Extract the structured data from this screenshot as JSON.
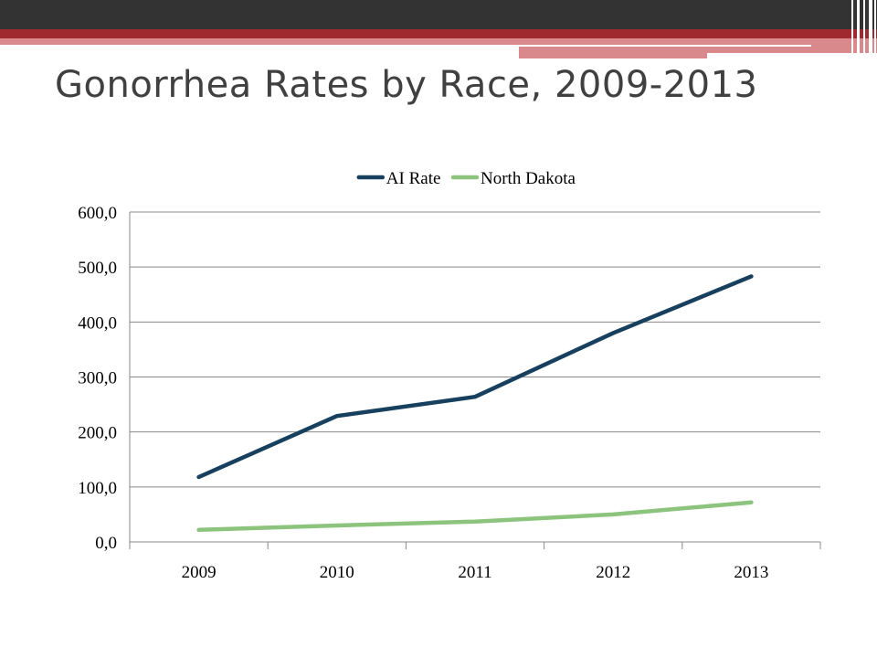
{
  "slide": {
    "title": "Gonorrhea Rates by Race, 2009-2013"
  },
  "chart_data": {
    "type": "line",
    "title": "",
    "xlabel": "",
    "ylabel": "",
    "x": [
      "2009",
      "2010",
      "2011",
      "2012",
      "2013"
    ],
    "ylim": [
      0,
      600
    ],
    "yticks": [
      "0,0",
      "100,0",
      "200,0",
      "300,0",
      "400,0",
      "500,0",
      "600,0"
    ],
    "grid": true,
    "legend_position": "top",
    "series": [
      {
        "name": "AI Rate",
        "color": "#17405e",
        "values": [
          118,
          229,
          264,
          380,
          483
        ]
      },
      {
        "name": "North Dakota",
        "color": "#8cc47e",
        "values": [
          22,
          30,
          37,
          50,
          72
        ]
      }
    ]
  },
  "colors": {
    "banner_dark": "#333333",
    "banner_red": "#a0282f",
    "title_text": "#404040",
    "gridline": "#888888"
  }
}
